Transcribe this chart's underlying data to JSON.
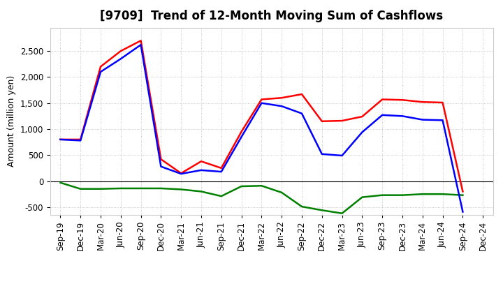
{
  "title": "[9709]  Trend of 12-Month Moving Sum of Cashflows",
  "ylabel": "Amount (million yen)",
  "x_labels": [
    "Sep-19",
    "Dec-19",
    "Mar-20",
    "Jun-20",
    "Sep-20",
    "Dec-20",
    "Mar-21",
    "Jun-21",
    "Sep-21",
    "Dec-21",
    "Mar-22",
    "Jun-22",
    "Sep-22",
    "Dec-22",
    "Mar-23",
    "Jun-23",
    "Sep-23",
    "Dec-23",
    "Mar-24",
    "Jun-24",
    "Sep-24",
    "Dec-24"
  ],
  "operating": [
    800,
    800,
    2200,
    2500,
    2700,
    420,
    150,
    380,
    250,
    950,
    1570,
    1600,
    1670,
    1150,
    1160,
    1240,
    1570,
    1560,
    1520,
    1510,
    -200,
    null
  ],
  "investing": [
    -30,
    -150,
    -150,
    -140,
    -140,
    -140,
    -160,
    -200,
    -290,
    -100,
    -90,
    -220,
    -490,
    -560,
    -620,
    -310,
    -270,
    -270,
    -250,
    -250,
    -270,
    null
  ],
  "free": [
    800,
    780,
    2100,
    2350,
    2620,
    280,
    140,
    210,
    180,
    850,
    1500,
    1440,
    1300,
    520,
    490,
    940,
    1270,
    1250,
    1180,
    1170,
    -590,
    null
  ],
  "operating_color": "#ff0000",
  "investing_color": "#008000",
  "free_color": "#0000ff",
  "ylim": [
    -650,
    2950
  ],
  "yticks": [
    -500,
    0,
    500,
    1000,
    1500,
    2000,
    2500
  ],
  "bg_color": "#ffffff",
  "grid_color": "#bbbbbb",
  "title_fontsize": 12,
  "axis_fontsize": 8.5,
  "legend_fontsize": 9.5,
  "linewidth": 1.8
}
